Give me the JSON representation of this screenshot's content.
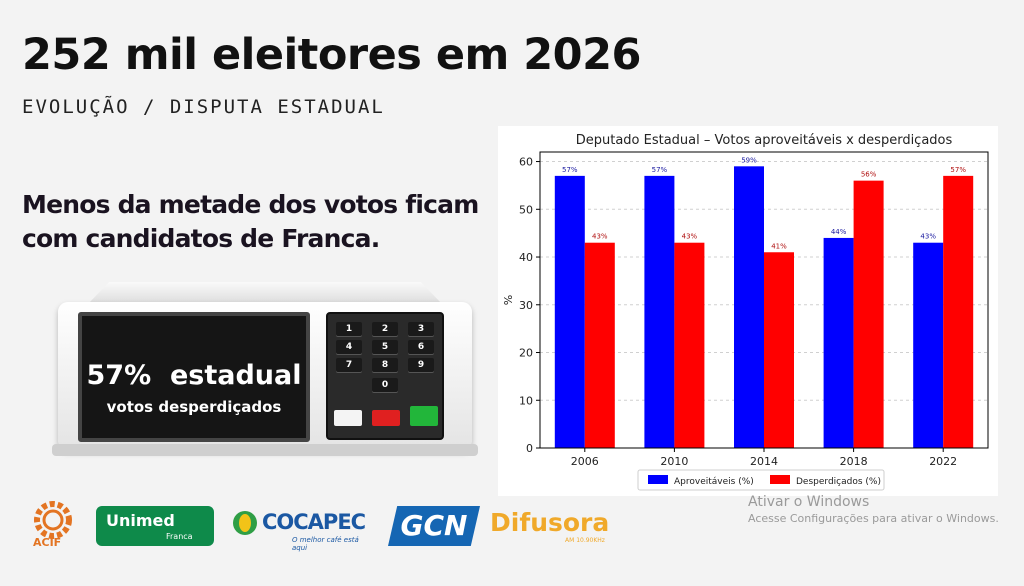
{
  "headline": "252 mil eleitores em 2026",
  "subhead": "EVOLUÇÃO / DISPUTA ESTADUAL",
  "note": "Menos da metade dos votos ficam com candidatos de Franca.",
  "machine": {
    "percent": "57%",
    "scope": "estadual",
    "caption": "votos desperdiçados",
    "keys": [
      "1",
      "2",
      "3",
      "4",
      "5",
      "6",
      "7",
      "8",
      "9",
      "0"
    ]
  },
  "logos": {
    "acif": "ACIF",
    "unimed": "Unimed",
    "unimed_city": "Franca",
    "cocapec": "COCAPEC",
    "cocapec_tag": "O melhor café está aqui",
    "gcn": "GCN",
    "difusora": "Difusora",
    "difusora_sub": "AM 10.90KHz"
  },
  "watermark": {
    "title": "Ativar o Windows",
    "subtitle": "Acesse Configurações para ativar o Windows."
  },
  "colors": {
    "series1": "#0000ff",
    "series2": "#ff0000"
  },
  "chart_data": {
    "type": "bar",
    "title": "Deputado Estadual – Votos aproveitáveis x desperdiçados",
    "xlabel": "",
    "ylabel": "%",
    "ylim": [
      0,
      62
    ],
    "yticks": [
      0,
      10,
      20,
      30,
      40,
      50,
      60
    ],
    "grid": "horizontal-dashed",
    "legend": "bottom-center",
    "categories": [
      "2006",
      "2010",
      "2014",
      "2018",
      "2022"
    ],
    "series": [
      {
        "name": "Aproveitáveis (%)",
        "values": [
          57,
          57,
          59,
          44,
          43
        ],
        "labels": [
          "57%",
          "57%",
          "59%",
          "44%",
          "43%"
        ]
      },
      {
        "name": "Desperdiçados (%)",
        "values": [
          43,
          43,
          41,
          56,
          57
        ],
        "labels": [
          "43%",
          "43%",
          "41%",
          "56%",
          "57%"
        ]
      }
    ]
  }
}
